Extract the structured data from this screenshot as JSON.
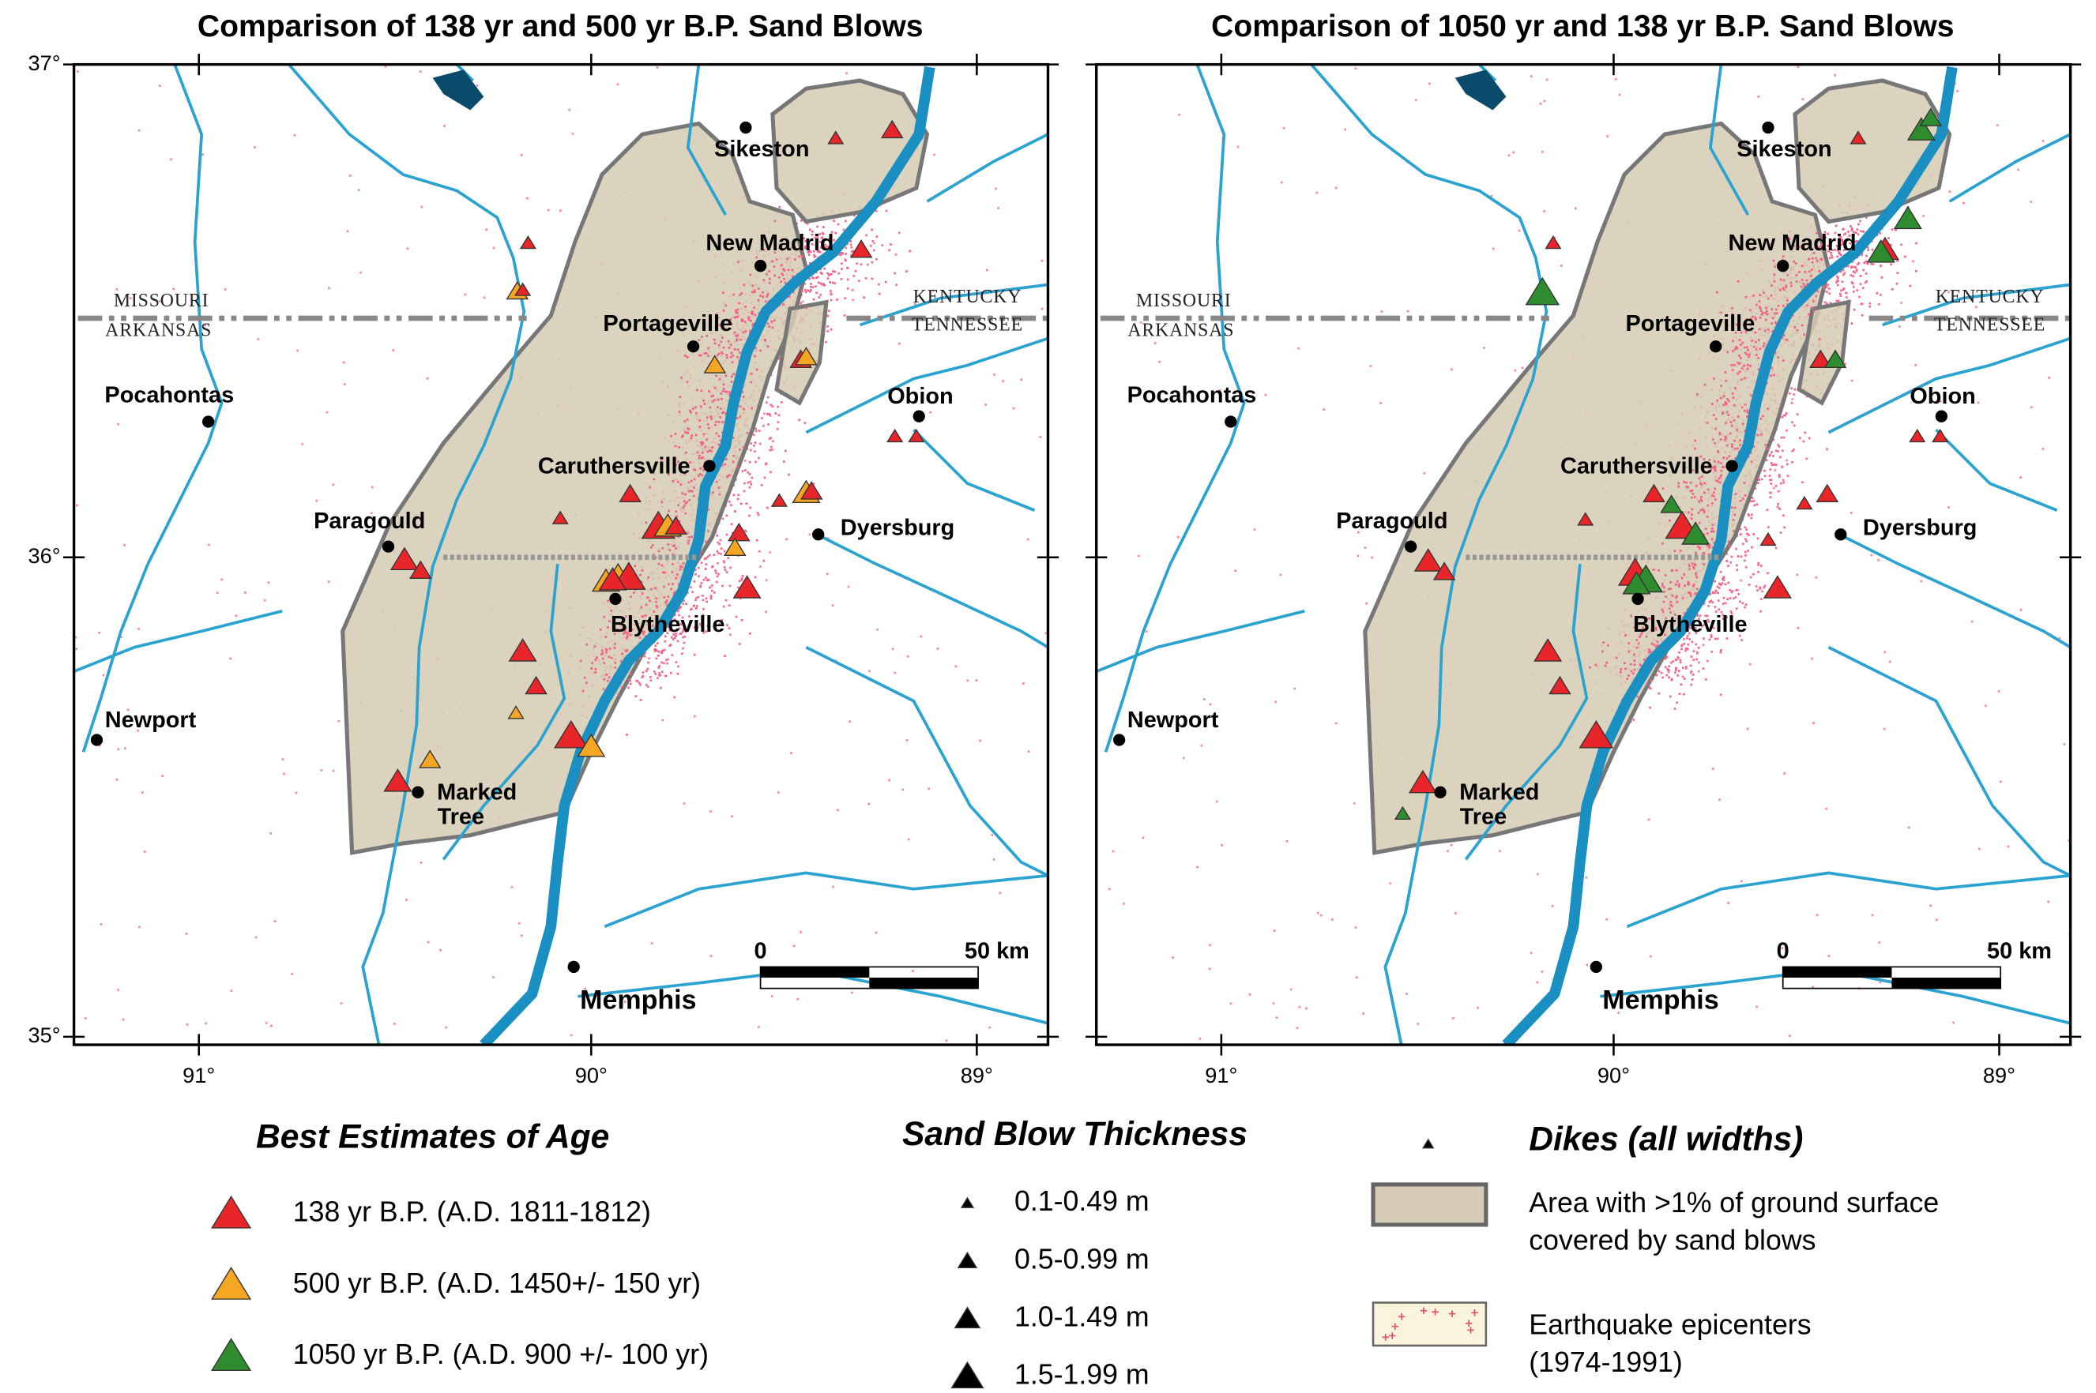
{
  "panels": [
    {
      "title": "Comparison of 138 yr and 500 yr B.P. Sand Blows",
      "lat_labels": [
        "37°",
        "36°",
        "35°"
      ],
      "lon_labels": [
        "91°",
        "90°",
        "89°"
      ],
      "states": [
        "MISSOURI",
        "ARKANSAS",
        "KENTUCKY",
        "TENNESSEE"
      ],
      "cities": [
        "Sikeston",
        "New Madrid",
        "Portageville",
        "Pocahontas",
        "Obion",
        "Caruthersville",
        "Paragould",
        "Dyersburg",
        "Blytheville",
        "Newport",
        "Marked",
        "Tree",
        "Memphis"
      ],
      "scale_bar": [
        "0",
        "50 km"
      ]
    },
    {
      "title": "Comparison of 1050 yr and 138 yr B.P. Sand Blows",
      "lat_labels": [],
      "lon_labels": [
        "91°",
        "90°",
        "89°"
      ],
      "states": [
        "MISSOURI",
        "ARKANSAS",
        "KENTUCKY",
        "TENNESSEE"
      ],
      "cities": [
        "Sikeston",
        "New Madrid",
        "Portageville",
        "Pocahontas",
        "Obion",
        "Caruthersville",
        "Paragould",
        "Dyersburg",
        "Blytheville",
        "Newport",
        "Marked",
        "Tree",
        "Memphis"
      ],
      "scale_bar": [
        "0",
        "50 km"
      ]
    }
  ],
  "legend": {
    "age": {
      "title": "Best Estimates of Age",
      "items": [
        "138 yr B.P. (A.D. 1811-1812)",
        "500 yr B.P. (A.D. 1450+/- 150 yr)",
        "1050 yr B.P. (A.D. 900 +/- 100 yr)"
      ]
    },
    "thickness": {
      "title": "Sand Blow Thickness",
      "items": [
        "0.1-0.49 m",
        "0.5-0.99 m",
        "1.0-1.49 m",
        "1.5-1.99 m"
      ]
    },
    "dikes": "Dikes (all widths)",
    "area": [
      "Area with >1% of ground surface",
      "covered by sand blows"
    ],
    "epicenters": [
      "Earthquake epicenters",
      "(1974-1991)"
    ]
  }
}
